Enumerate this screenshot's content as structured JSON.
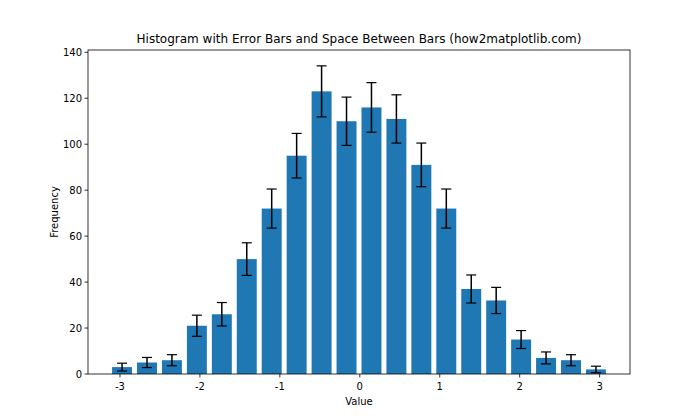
{
  "chart_data": {
    "type": "histogram",
    "title": "Histogram with Error Bars and Space Between Bars (how2matplotlib.com)",
    "x_label": "Value",
    "y_label": "Frequency",
    "bins": [
      -3.13,
      -2.818,
      -2.506,
      -2.194,
      -1.882,
      -1.57,
      -1.258,
      -0.946,
      -0.634,
      -0.322,
      -0.01,
      0.302,
      0.614,
      0.926,
      1.238,
      1.55,
      1.862,
      2.174,
      2.486,
      2.798,
      3.11
    ],
    "values": [
      3,
      5,
      6,
      21,
      26,
      50,
      72,
      95,
      123,
      110,
      116,
      111,
      91,
      72,
      37,
      32,
      15,
      7,
      6,
      2
    ],
    "errors": [
      1.7,
      2.2,
      2.4,
      4.6,
      5.1,
      7.1,
      8.5,
      9.7,
      11.1,
      10.5,
      10.8,
      10.5,
      9.5,
      8.5,
      6.1,
      5.7,
      3.9,
      2.6,
      2.4,
      1.4
    ],
    "color": "#1f77b4",
    "xlim": [
      -3.4,
      3.38
    ],
    "ylim": [
      0,
      141
    ],
    "xticks": [
      -3,
      -2,
      -1,
      0,
      1,
      2,
      3
    ],
    "yticks": [
      0,
      20,
      40,
      60,
      80,
      100,
      120,
      140
    ],
    "grid": false
  }
}
